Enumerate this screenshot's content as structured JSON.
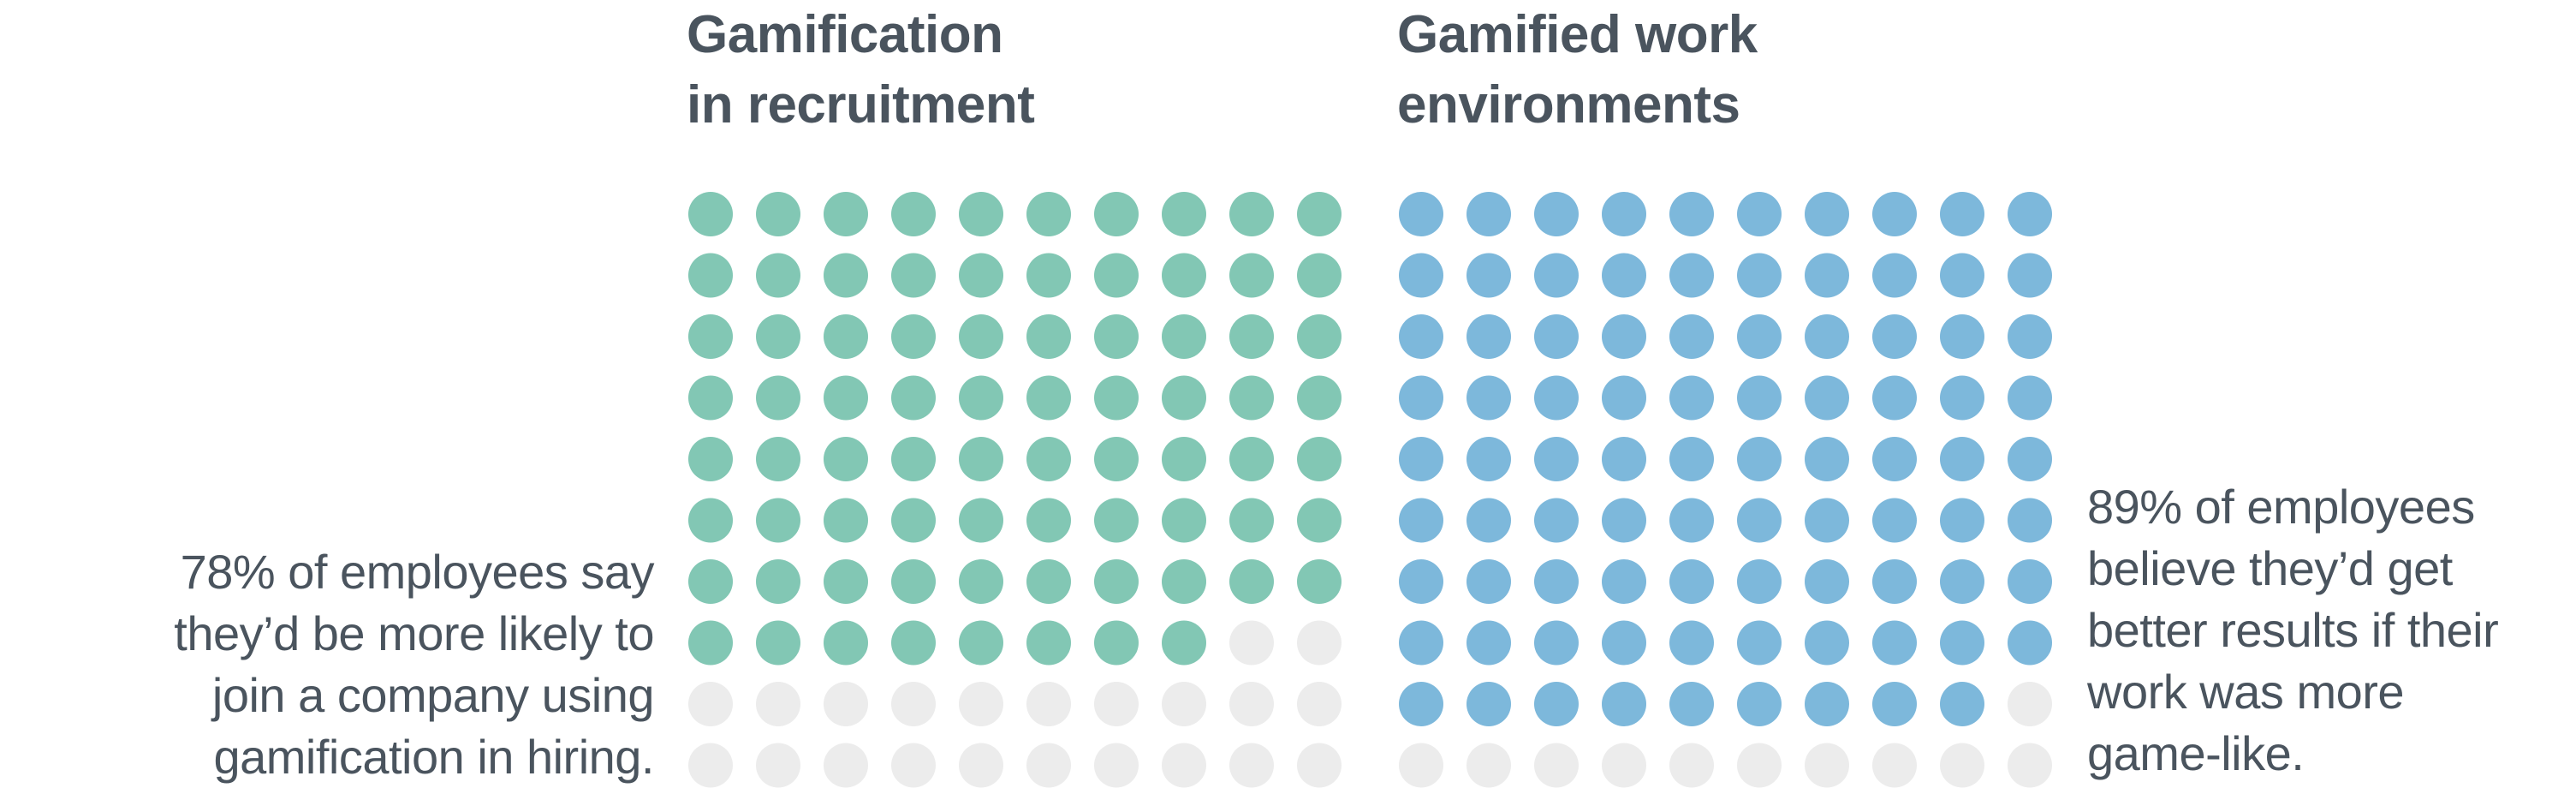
{
  "chart_data": [
    {
      "type": "waffle",
      "title_lines": [
        "Gamification",
        "in recruitment"
      ],
      "value_percent": 78,
      "grid": {
        "rows": 10,
        "cols": 10
      },
      "filled_color": "#82c7b4",
      "empty_color": "#ececec",
      "caption_lines": [
        "78% of employees say",
        "they’d be more likely to",
        "join a company using",
        "gamification in hiring."
      ]
    },
    {
      "type": "waffle",
      "title_lines": [
        "Gamified work",
        "environments"
      ],
      "value_percent": 89,
      "grid": {
        "rows": 10,
        "cols": 10
      },
      "filled_color": "#7db8db",
      "empty_color": "#ececec",
      "caption_lines": [
        "89% of employees",
        "believe they’d get",
        "better results if their",
        "work was more",
        "game-like."
      ]
    }
  ]
}
